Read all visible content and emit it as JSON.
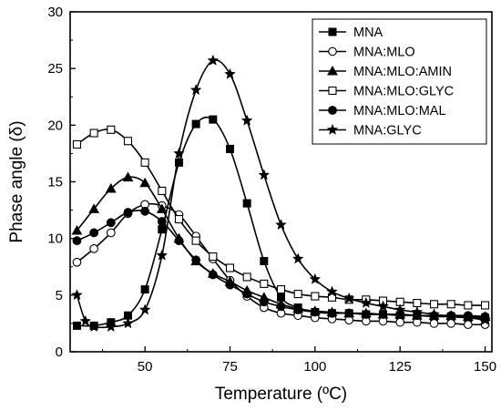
{
  "chart_data": {
    "type": "line",
    "xlabel": "Temperature (ºC)",
    "ylabel": "Phase angle (δ)",
    "xlim": [
      28,
      152
    ],
    "ylim": [
      0,
      30
    ],
    "xticks": [
      50,
      75,
      100,
      125,
      150
    ],
    "yticks": [
      0,
      5,
      10,
      15,
      20,
      25,
      30
    ],
    "grid": false,
    "legend_position": "top-right",
    "series": [
      {
        "name": "MNA",
        "marker": "square-filled",
        "x": [
          30,
          35,
          40,
          45,
          50,
          55,
          60,
          65,
          70,
          75,
          80,
          85,
          90,
          95,
          100,
          105,
          110,
          115,
          120,
          125,
          130,
          135,
          140,
          145,
          150
        ],
        "y": [
          2.3,
          2.3,
          2.6,
          3.2,
          5.5,
          10.8,
          16.7,
          20.1,
          20.5,
          17.9,
          13.1,
          8.0,
          4.8,
          3.9,
          3.5,
          3.4,
          3.4,
          3.3,
          3.3,
          3.2,
          3.2,
          3.1,
          3.1,
          3.0,
          3.0
        ]
      },
      {
        "name": "MNA:MLO",
        "marker": "circle-open",
        "x": [
          30,
          35,
          40,
          45,
          50,
          55,
          60,
          65,
          70,
          75,
          80,
          85,
          90,
          95,
          100,
          105,
          110,
          115,
          120,
          125,
          130,
          135,
          140,
          145,
          150
        ],
        "y": [
          7.9,
          9.1,
          10.5,
          12.2,
          13.0,
          12.9,
          12.1,
          10.2,
          8.2,
          6.3,
          4.9,
          3.9,
          3.4,
          3.2,
          3.0,
          2.9,
          2.8,
          2.7,
          2.7,
          2.6,
          2.6,
          2.5,
          2.5,
          2.4,
          2.4
        ]
      },
      {
        "name": "MNA:MLO:AMIN",
        "marker": "triangle-filled",
        "x": [
          30,
          35,
          40,
          45,
          50,
          55,
          60,
          65,
          70,
          75,
          80,
          85,
          90,
          95,
          100,
          105,
          110,
          115,
          120,
          125,
          130,
          135,
          140,
          145,
          150
        ],
        "y": [
          10.7,
          12.6,
          14.4,
          15.4,
          14.9,
          12.6,
          10.0,
          8.0,
          6.9,
          6.2,
          5.4,
          4.8,
          4.2,
          3.8,
          3.6,
          3.5,
          3.4,
          3.4,
          3.3,
          3.3,
          3.2,
          3.2,
          3.2,
          3.1,
          3.1
        ]
      },
      {
        "name": "MNA:MLO:GLYC",
        "marker": "square-open",
        "x": [
          30,
          35,
          40,
          45,
          50,
          55,
          60,
          65,
          70,
          75,
          80,
          85,
          90,
          95,
          100,
          105,
          110,
          115,
          120,
          125,
          130,
          135,
          140,
          145,
          150
        ],
        "y": [
          18.3,
          19.3,
          19.6,
          18.6,
          16.7,
          14.2,
          11.7,
          9.8,
          8.4,
          7.4,
          6.6,
          6.0,
          5.5,
          5.1,
          4.9,
          4.8,
          4.6,
          4.6,
          4.5,
          4.4,
          4.3,
          4.2,
          4.2,
          4.1,
          4.1
        ]
      },
      {
        "name": "MNA:MLO:MAL",
        "marker": "circle-filled",
        "x": [
          30,
          35,
          40,
          45,
          50,
          55,
          60,
          65,
          70,
          75,
          80,
          85,
          90,
          95,
          100,
          105,
          110,
          115,
          120,
          125,
          130,
          135,
          140,
          145,
          150
        ],
        "y": [
          9.8,
          10.5,
          11.4,
          12.3,
          12.4,
          11.5,
          9.8,
          8.1,
          6.8,
          5.9,
          5.1,
          4.4,
          4.0,
          3.7,
          3.5,
          3.4,
          3.4,
          3.3,
          3.3,
          3.3,
          3.2,
          3.2,
          3.2,
          3.2,
          3.1
        ]
      },
      {
        "name": "MNA:GLYC",
        "marker": "star-filled",
        "x": [
          30,
          32.5,
          35,
          40,
          45,
          50,
          55,
          60,
          65,
          70,
          75,
          80,
          85,
          90,
          95,
          100,
          105,
          110,
          115,
          120,
          125,
          130,
          135,
          140,
          145,
          150
        ],
        "y": [
          5.0,
          2.7,
          2.2,
          2.2,
          2.5,
          3.7,
          8.5,
          17.5,
          23.1,
          25.7,
          24.5,
          20.4,
          15.6,
          11.2,
          8.2,
          6.4,
          5.3,
          4.7,
          4.3,
          4.0,
          3.7,
          3.5,
          3.3,
          3.1,
          3.0,
          2.8
        ]
      }
    ]
  }
}
